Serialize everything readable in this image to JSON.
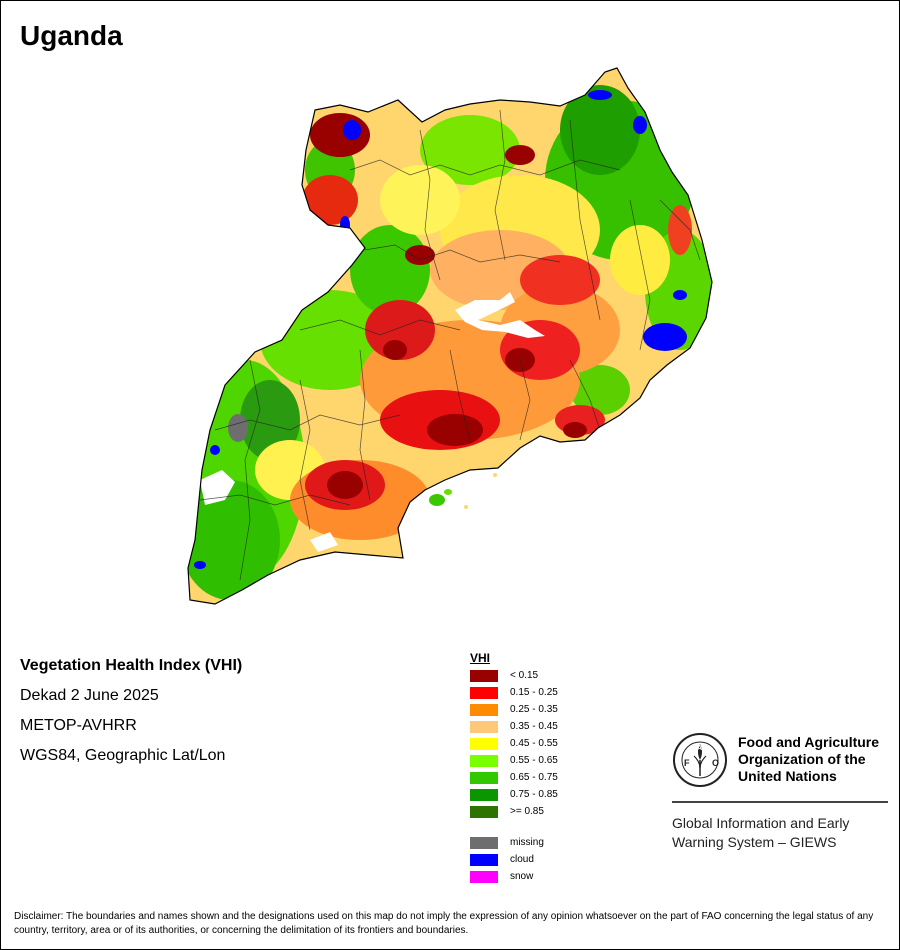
{
  "map": {
    "title": "Uganda"
  },
  "info": {
    "index_name": "Vegetation Health Index (VHI)",
    "period": "Dekad 2 June 2025",
    "sensor": "METOP-AVHRR",
    "projection": "WGS84, Geographic Lat/Lon"
  },
  "legend": {
    "title": "VHI",
    "classes": [
      {
        "label": "< 0.15",
        "color": "#990000"
      },
      {
        "label": "0.15 - 0.25",
        "color": "#ff0000"
      },
      {
        "label": "0.25 - 0.35",
        "color": "#ff8c00"
      },
      {
        "label": "0.35 - 0.45",
        "color": "#ffc878"
      },
      {
        "label": "0.45 - 0.55",
        "color": "#ffff00"
      },
      {
        "label": "0.55 - 0.65",
        "color": "#78ff00"
      },
      {
        "label": "0.65 - 0.75",
        "color": "#32c800"
      },
      {
        "label": "0.75 - 0.85",
        "color": "#0a9600"
      },
      {
        "label": ">= 0.85",
        "color": "#2d7300"
      }
    ],
    "special": [
      {
        "label": "missing",
        "color": "#6e6e6e"
      },
      {
        "label": "cloud",
        "color": "#0000ff"
      },
      {
        "label": "snow",
        "color": "#ff00ff"
      }
    ]
  },
  "organization": {
    "logo_text": "FAO",
    "logo_motto": "FIAT PANIS",
    "name_line1": "Food and Agriculture",
    "name_line2": "Organization of the",
    "name_line3": "United Nations",
    "system_line1": "Global Information and Early",
    "system_line2": "Warning System – GIEWS"
  },
  "disclaimer": "Disclaimer: The boundaries and names shown and the designations used on this map do not imply the expression of any opinion whatsoever on the part of FAO concerning the legal status of any country, territory, area or of its authorities, or concerning the delimitation of its frontiers and boundaries."
}
